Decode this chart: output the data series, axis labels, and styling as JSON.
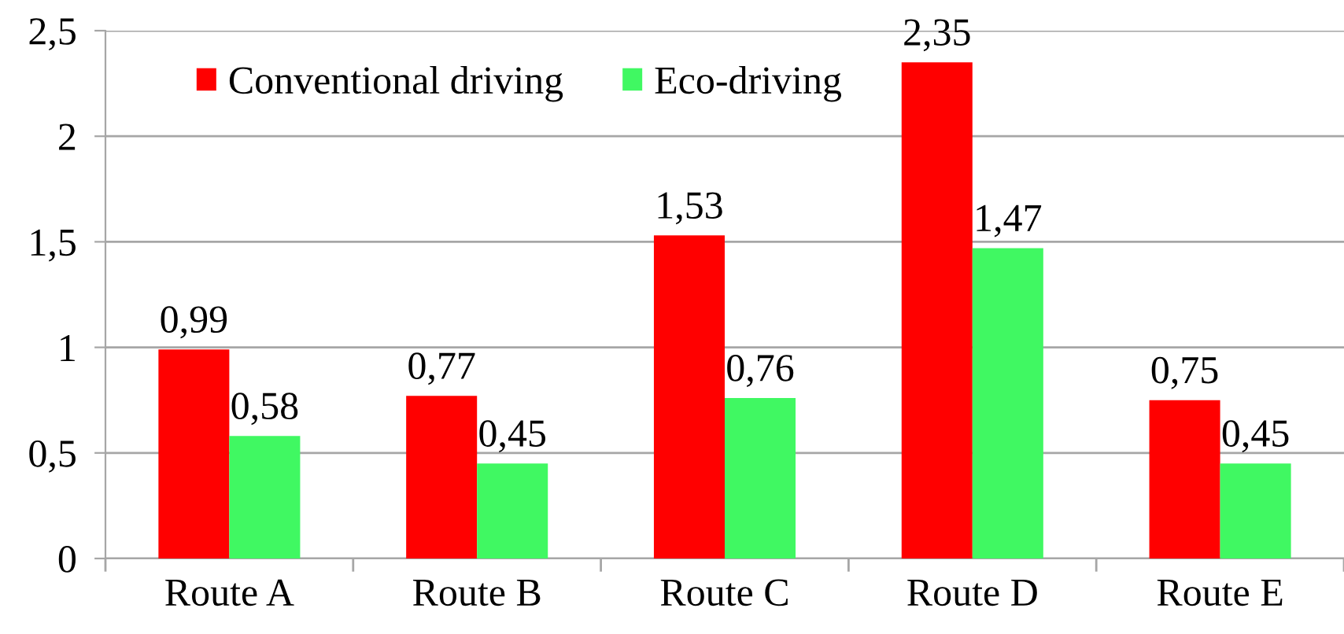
{
  "chart_data": {
    "type": "bar",
    "categories": [
      "Route A",
      "Route B",
      "Route C",
      "Route D",
      "Route E"
    ],
    "series": [
      {
        "name": "Conventional driving",
        "color": "#ff0000",
        "values": [
          0.99,
          0.77,
          1.53,
          2.35,
          0.75
        ],
        "value_labels": [
          "0,99",
          "0,77",
          "1,53",
          "2,35",
          "0,75"
        ]
      },
      {
        "name": "Eco-driving",
        "color": "#40f862",
        "values": [
          0.58,
          0.45,
          0.76,
          1.47,
          0.45
        ],
        "value_labels": [
          "0,58",
          "0,45",
          "0,76",
          "1,47",
          "0,45"
        ]
      }
    ],
    "ylim": [
      0,
      2.5
    ],
    "yticks": [
      0,
      {
        "value": 0.5,
        "label": "0,5"
      },
      1,
      {
        "value": 1.5,
        "label": "1,5"
      },
      2,
      {
        "value": 2.5,
        "label": "2,5"
      }
    ],
    "grid": "y",
    "legend": "top left"
  }
}
